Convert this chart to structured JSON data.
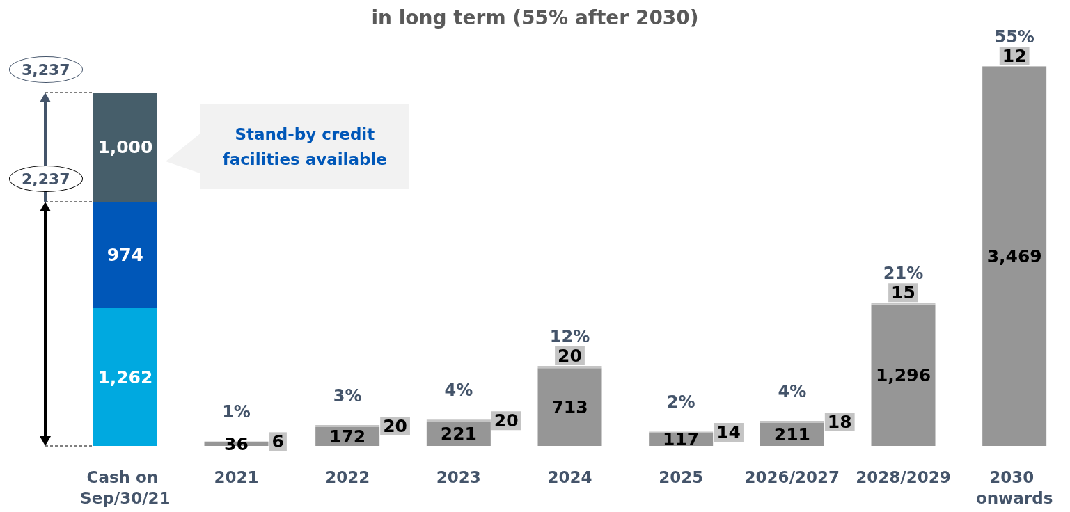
{
  "chart_data": {
    "type": "bar",
    "title": "in long term (55% after 2030)",
    "categories": [
      "Cash on Sep/30/21",
      "2021",
      "2022",
      "2023",
      "2024",
      "2025",
      "2026/2027",
      "2028/2029",
      "2030 onwards"
    ],
    "stacked": true,
    "series": [
      {
        "color": "#00a9e0",
        "values": [
          1262,
          null,
          null,
          null,
          null,
          null,
          null,
          null,
          null
        ],
        "value_labels": [
          "1,262",
          null,
          null,
          null,
          null,
          null,
          null,
          null,
          null
        ]
      },
      {
        "color": "#0057b8",
        "values": [
          974,
          null,
          null,
          null,
          null,
          null,
          null,
          null,
          null
        ],
        "value_labels": [
          "974",
          null,
          null,
          null,
          null,
          null,
          null,
          null,
          null
        ]
      },
      {
        "color": "#465e6a",
        "values": [
          1000,
          null,
          null,
          null,
          null,
          null,
          null,
          null,
          null
        ],
        "value_labels": [
          "1,000",
          null,
          null,
          null,
          null,
          null,
          null,
          null,
          null
        ]
      },
      {
        "color": "#969696",
        "values": [
          null,
          36,
          172,
          221,
          713,
          117,
          211,
          1296,
          3469
        ],
        "value_labels": [
          null,
          "36",
          "172",
          "221",
          "713",
          "117",
          "211",
          "1,296",
          "3,469"
        ]
      },
      {
        "color": "#c4c4c4",
        "values": [
          null,
          6,
          20,
          20,
          20,
          14,
          18,
          15,
          12
        ],
        "value_labels": [
          null,
          "6",
          "20",
          "20",
          "20",
          "14",
          "18",
          "15",
          "12"
        ]
      }
    ],
    "ref_lines": [
      {
        "axis": "y",
        "value": 3237,
        "label": "3,237",
        "line_style": "dashed"
      },
      {
        "axis": "y",
        "value": 2237,
        "label": "2,237",
        "line_style": "dashed"
      }
    ],
    "annotations": [
      {
        "text": "1%",
        "x": "2021",
        "y": 42
      },
      {
        "text": "3%",
        "x": "2022",
        "y": 192
      },
      {
        "text": "4%",
        "x": "2023",
        "y": 241
      },
      {
        "text": "12%",
        "x": "2024",
        "y": 733
      },
      {
        "text": "2%",
        "x": "2025",
        "y": 131
      },
      {
        "text": "4%",
        "x": "2026/2027",
        "y": 229
      },
      {
        "text": "21%",
        "x": "2028/2029",
        "y": 1311
      },
      {
        "text": "55%",
        "x": "2030 onwards",
        "y": 3481
      },
      "Stand-by credit facilities available"
    ]
  }
}
